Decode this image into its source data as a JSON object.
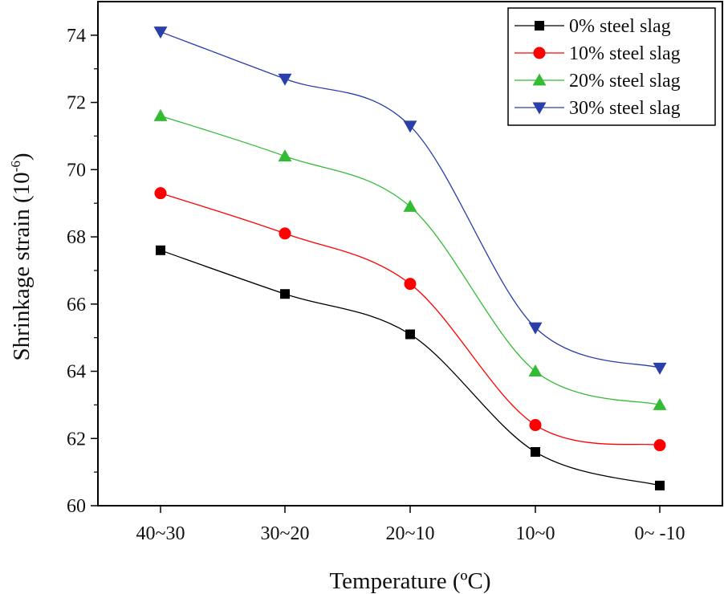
{
  "chart_data": {
    "type": "line",
    "title": "",
    "xlabel": "Temperature (ºC)",
    "ylabel": "Shrinkage strain",
    "ylabel_unit_base": "10",
    "ylabel_unit_exp": "-6",
    "categories": [
      "40~30",
      "30~20",
      "20~10",
      "10~0",
      "0~ -10"
    ],
    "ylim": [
      60,
      75
    ],
    "yticks": [
      60,
      62,
      64,
      66,
      68,
      70,
      72,
      74
    ],
    "grid": false,
    "legend_position": "top-right",
    "series": [
      {
        "name": "0% steel slag",
        "marker": "square",
        "color": "#000000",
        "values": [
          67.6,
          66.3,
          65.1,
          61.6,
          60.6
        ]
      },
      {
        "name": "10% steel slag",
        "marker": "circle",
        "color": "#ff0000",
        "values": [
          69.3,
          68.1,
          66.6,
          62.4,
          61.8
        ]
      },
      {
        "name": "20% steel slag",
        "marker": "triangle-up",
        "color": "#33bb33",
        "values": [
          71.6,
          70.4,
          68.9,
          64.0,
          63.0
        ]
      },
      {
        "name": "30% steel slag",
        "marker": "triangle-down",
        "color": "#2b3fa8",
        "values": [
          74.1,
          72.7,
          71.3,
          65.3,
          64.1
        ]
      }
    ]
  }
}
